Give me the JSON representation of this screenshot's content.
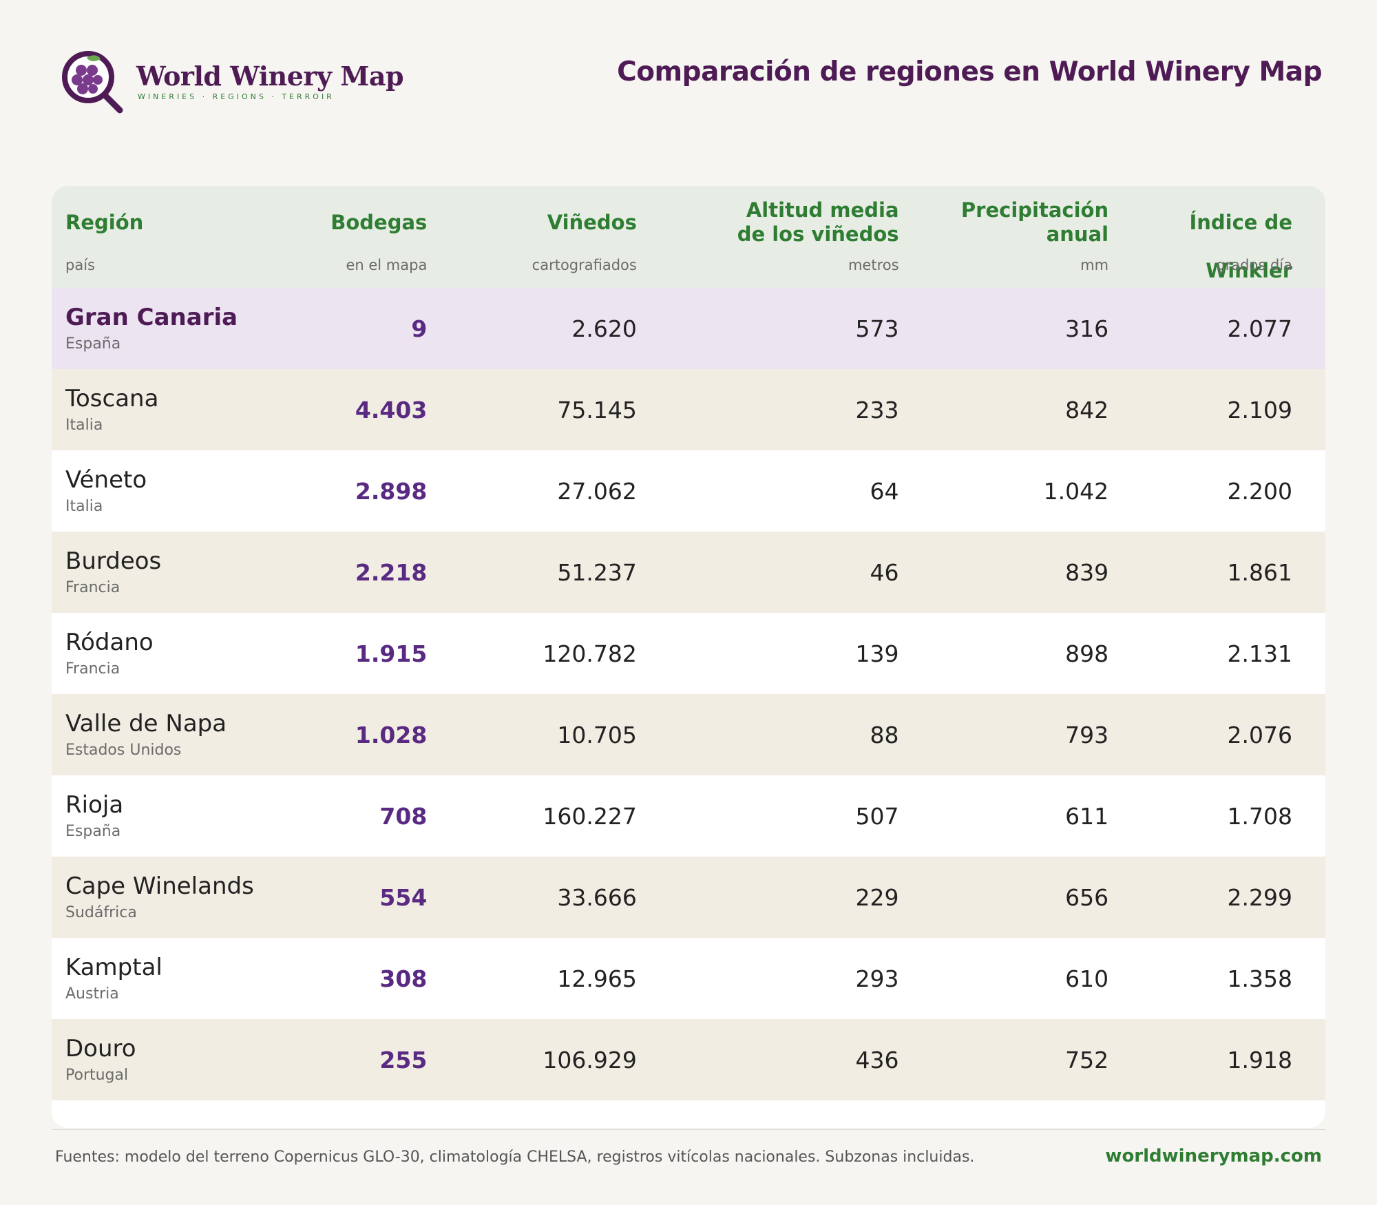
{
  "brand": {
    "name": "World Winery Map",
    "tagline": "WINERIES · REGIONS · TERROIR"
  },
  "page_title": "Comparación de regiones en World Winery Map",
  "table": {
    "columns": [
      {
        "label": "Región",
        "sub": "país"
      },
      {
        "label": "Bodegas",
        "sub": "en el mapa"
      },
      {
        "label": "Viñedos",
        "sub": "cartografiados"
      },
      {
        "label_line1": "Altitud media",
        "label_line2": "de los viñedos",
        "sub": "metros"
      },
      {
        "label_line1": "Precipitación",
        "label_line2": "anual",
        "sub": "mm"
      },
      {
        "label": "Índice de Winkler",
        "sub": "grados día"
      }
    ],
    "rows": [
      {
        "region": "Gran Canaria",
        "country": "España",
        "wineries": "9",
        "vineyards": "2.620",
        "altitude": "573",
        "precip": "316",
        "winkler": "2.077"
      },
      {
        "region": "Toscana",
        "country": "Italia",
        "wineries": "4.403",
        "vineyards": "75.145",
        "altitude": "233",
        "precip": "842",
        "winkler": "2.109"
      },
      {
        "region": "Véneto",
        "country": "Italia",
        "wineries": "2.898",
        "vineyards": "27.062",
        "altitude": "64",
        "precip": "1.042",
        "winkler": "2.200"
      },
      {
        "region": "Burdeos",
        "country": "Francia",
        "wineries": "2.218",
        "vineyards": "51.237",
        "altitude": "46",
        "precip": "839",
        "winkler": "1.861"
      },
      {
        "region": "Ródano",
        "country": "Francia",
        "wineries": "1.915",
        "vineyards": "120.782",
        "altitude": "139",
        "precip": "898",
        "winkler": "2.131"
      },
      {
        "region": "Valle de Napa",
        "country": "Estados Unidos",
        "wineries": "1.028",
        "vineyards": "10.705",
        "altitude": "88",
        "precip": "793",
        "winkler": "2.076"
      },
      {
        "region": "Rioja",
        "country": "España",
        "wineries": "708",
        "vineyards": "160.227",
        "altitude": "507",
        "precip": "611",
        "winkler": "1.708"
      },
      {
        "region": "Cape Winelands",
        "country": "Sudáfrica",
        "wineries": "554",
        "vineyards": "33.666",
        "altitude": "229",
        "precip": "656",
        "winkler": "2.299"
      },
      {
        "region": "Kamptal",
        "country": "Austria",
        "wineries": "308",
        "vineyards": "12.965",
        "altitude": "293",
        "precip": "610",
        "winkler": "1.358"
      },
      {
        "region": "Douro",
        "country": "Portugal",
        "wineries": "255",
        "vineyards": "106.929",
        "altitude": "436",
        "precip": "752",
        "winkler": "1.918"
      }
    ]
  },
  "footer": {
    "sources": "Fuentes: modelo del terreno Copernicus GLO-30, climatología CHELSA, registros vitícolas nacionales. Subzonas incluidas.",
    "site": "worldwinerymap.com"
  },
  "colors": {
    "brand_purple": "#4e1b55",
    "accent_green": "#2f7d32",
    "winery_purple": "#5a2a82",
    "highlight_row": "#ede4f2",
    "alt_row": "#f1ede3",
    "header_bg": "#e7ede5"
  }
}
